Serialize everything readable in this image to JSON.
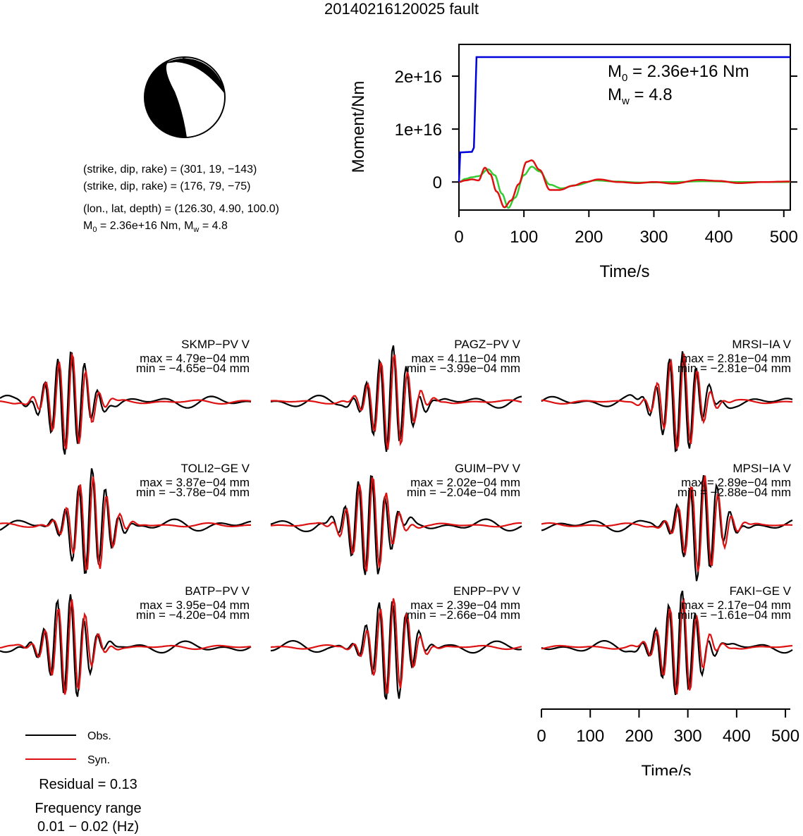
{
  "title": "20140216120025 fault",
  "source_info": {
    "nodal_plane_1": "(strike, dip, rake) = (301, 19, −143)",
    "nodal_plane_2": "(strike, dip, rake) = (176, 79, −75)",
    "location": "(lon., lat, depth) = (126.30, 4.90, 100.0)",
    "moment_M": "M",
    "moment_sub": "0",
    "moment_rest": " = 2.36e+16 Nm, M",
    "mw_sub": "w",
    "mw_rest": " = 4.8"
  },
  "legend": {
    "obs_label": "Obs.",
    "syn_label": "Syn.",
    "obs_color": "#000000",
    "syn_color": "#dd1111"
  },
  "residual": "Residual = 0.13",
  "frequency_title": "Frequency range",
  "frequency_value": "0.01 − 0.02 (Hz)",
  "chart_data": [
    {
      "type": "line",
      "name": "moment-rate",
      "xlabel": "Time/s",
      "ylabel": "Moment/Nm",
      "xlim": [
        0,
        510
      ],
      "ylim": [
        -5300000000000000.0,
        2.6e+16
      ],
      "x_ticks": [
        "0",
        "100",
        "200",
        "300",
        "400",
        "500"
      ],
      "y_ticks": [
        "0",
        "1e+16",
        "2e+16"
      ],
      "annotation_M0": "M",
      "annotation_M0_sub": "0",
      "annotation_M0_val": " = 2.36e+16 Nm",
      "annotation_Mw": "M",
      "annotation_Mw_sub": "w",
      "annotation_Mw_val": " = 4.8",
      "series_colors": [
        "#0000dd",
        "#dd1111",
        "#33cc33"
      ],
      "cumulative_moment": {
        "color": "#0000dd",
        "points": [
          [
            0,
            0
          ],
          [
            2,
            5600000000000000.0
          ],
          [
            20,
            5700000000000000.0
          ],
          [
            23,
            6500000000000000.0
          ],
          [
            27,
            2.36e+16
          ],
          [
            510,
            2.36e+16
          ]
        ]
      },
      "waveform_red": {
        "color": "#dd1111",
        "points": [
          [
            0,
            0
          ],
          [
            10,
            300000000000000.0
          ],
          [
            20,
            500000000000000.0
          ],
          [
            30,
            300000000000000.0
          ],
          [
            40,
            2700000000000000.0
          ],
          [
            48,
            1500000000000000.0
          ],
          [
            58,
            -1800000000000000.0
          ],
          [
            70,
            -4800000000000000.0
          ],
          [
            80,
            -3500000000000000.0
          ],
          [
            92,
            -400000000000000.0
          ],
          [
            104,
            3800000000000000.0
          ],
          [
            112,
            4100000000000000.0
          ],
          [
            124,
            2300000000000000.0
          ],
          [
            140,
            -1500000000000000.0
          ],
          [
            155,
            -1500000000000000.0
          ],
          [
            175,
            -700000000000000.0
          ],
          [
            195,
            0
          ],
          [
            215,
            500000000000000.0
          ],
          [
            245,
            0
          ],
          [
            275,
            -200000000000000.0
          ],
          [
            300,
            0
          ],
          [
            330,
            -300000000000000.0
          ],
          [
            370,
            400000000000000.0
          ],
          [
            400,
            200000000000000.0
          ],
          [
            430,
            -200000000000000.0
          ],
          [
            470,
            0
          ],
          [
            510,
            100000000000000.0
          ]
        ]
      },
      "waveform_green": {
        "color": "#33cc33",
        "points": [
          [
            0,
            0
          ],
          [
            10,
            600000000000000.0
          ],
          [
            20,
            900000000000000.0
          ],
          [
            30,
            1100000000000000.0
          ],
          [
            45,
            2400000000000000.0
          ],
          [
            55,
            1300000000000000.0
          ],
          [
            66,
            -2200000000000000.0
          ],
          [
            76,
            -4900000000000000.0
          ],
          [
            86,
            -3000000000000000.0
          ],
          [
            100,
            1300000000000000.0
          ],
          [
            112,
            2900000000000000.0
          ],
          [
            124,
            2000000000000000.0
          ],
          [
            140,
            -500000000000000.0
          ],
          [
            158,
            -1200000000000000.0
          ],
          [
            180,
            -600000000000000.0
          ],
          [
            210,
            300000000000000.0
          ],
          [
            240,
            100000000000000.0
          ],
          [
            280,
            -100000000000000.0
          ],
          [
            330,
            0
          ],
          [
            380,
            150000000000000.0
          ],
          [
            430,
            0
          ],
          [
            510,
            0
          ]
        ]
      }
    },
    {
      "type": "line",
      "name": "waveform-fits",
      "xlabel": "Time/s",
      "xlim": [
        0,
        510
      ],
      "x_ticks": [
        "0",
        "100",
        "200",
        "300",
        "400",
        "500"
      ],
      "series": [
        {
          "name": "Obs."
        },
        {
          "name": "Syn."
        }
      ],
      "stations": [
        {
          "name": "SKMP−PV V",
          "max": "max = 4.79e−04 mm",
          "min": "min = −4.65e−04 mm"
        },
        {
          "name": "PAGZ−PV V",
          "max": "max = 4.11e−04 mm",
          "min": "min = −3.99e−04 mm"
        },
        {
          "name": "MRSI−IA V",
          "max": "max = 2.81e−04 mm",
          "min": "min = −2.81e−04 mm"
        },
        {
          "name": "TOLI2−GE V",
          "max": "max = 3.87e−04 mm",
          "min": "min = −3.78e−04 mm"
        },
        {
          "name": "GUIM−PV V",
          "max": "max = 2.02e−04 mm",
          "min": "min = −2.04e−04 mm"
        },
        {
          "name": "MPSI−IA V",
          "max": "max = 2.89e−04 mm",
          "min": "min = −2.88e−04 mm"
        },
        {
          "name": "BATP−PV V",
          "max": "max = 3.95e−04 mm",
          "min": "min = −4.20e−04 mm"
        },
        {
          "name": "ENPP−PV V",
          "max": "max = 2.39e−04 mm",
          "min": "min = −2.66e−04 mm"
        },
        {
          "name": "FAKI−GE V",
          "max": "max = 2.17e−04 mm",
          "min": "min = −1.61e−04 mm"
        }
      ]
    }
  ]
}
